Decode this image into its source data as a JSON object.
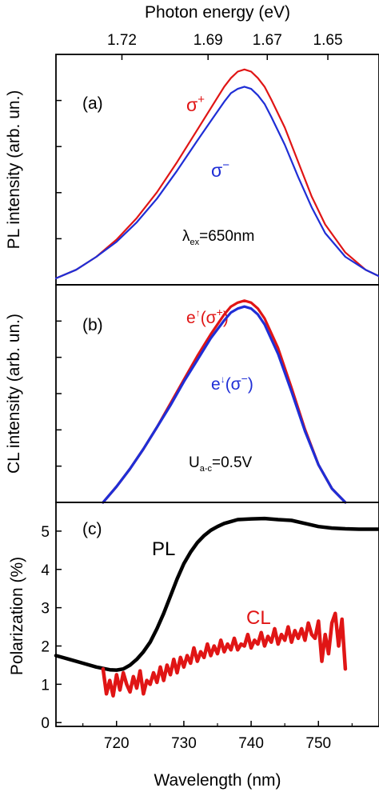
{
  "chart_data": [
    {
      "type": "line",
      "panel_label": "(a)",
      "top_axis_label": "Photon energy (eV)",
      "top_ticks": [
        "1.72",
        "1.69",
        "1.67",
        "1.65"
      ],
      "top_tick_wavelengths": [
        720.8,
        733.6,
        742.4,
        751.4
      ],
      "ylabel": "PL intensity (arb. un.)",
      "xlim": [
        711,
        759
      ],
      "ylim": [
        0,
        1.07
      ],
      "annotation": {
        "lambda": "λ",
        "sub": "ex",
        "value": "=650nm"
      },
      "series": [
        {
          "name": "σ+",
          "name_base": "σ",
          "name_sup": "+",
          "color": "#e01515",
          "x": [
            711,
            714,
            717,
            720,
            723,
            726,
            729,
            732,
            734,
            736,
            737,
            738,
            739,
            740,
            741,
            742,
            743,
            745,
            747,
            749,
            751,
            754,
            757,
            759
          ],
          "y": [
            0.03,
            0.07,
            0.13,
            0.21,
            0.31,
            0.43,
            0.57,
            0.72,
            0.82,
            0.92,
            0.96,
            0.99,
            1.0,
            0.99,
            0.96,
            0.92,
            0.86,
            0.73,
            0.57,
            0.41,
            0.28,
            0.15,
            0.07,
            0.04
          ]
        },
        {
          "name": "σ−",
          "name_base": "σ",
          "name_sup": "−",
          "color": "#1f2ed6",
          "x": [
            711,
            714,
            717,
            720,
            723,
            726,
            729,
            732,
            734,
            736,
            737,
            738,
            739,
            740,
            741,
            742,
            743,
            745,
            747,
            749,
            751,
            754,
            757,
            759
          ],
          "y": [
            0.03,
            0.07,
            0.13,
            0.2,
            0.29,
            0.4,
            0.53,
            0.67,
            0.76,
            0.85,
            0.89,
            0.91,
            0.92,
            0.91,
            0.88,
            0.84,
            0.78,
            0.65,
            0.5,
            0.36,
            0.24,
            0.13,
            0.07,
            0.04
          ]
        }
      ]
    },
    {
      "type": "line",
      "panel_label": "(b)",
      "ylabel": "CL intensity (arb. un.)",
      "xlim": [
        711,
        759
      ],
      "ylim": [
        0,
        1.1
      ],
      "annotation": {
        "main": "U",
        "sub": "a-c",
        "value": "=0.5V"
      },
      "series": [
        {
          "name": "e↑(σ+)",
          "name_base": "e",
          "name_arrow": "↑",
          "name_paren_base": "(σ",
          "name_sup": "+",
          "name_end": ")",
          "color": "#e01515",
          "x": [
            718,
            720,
            722,
            724,
            726,
            728,
            730,
            732,
            734,
            736,
            737,
            738,
            739,
            740,
            741,
            742,
            744,
            746,
            748,
            750,
            752,
            754
          ],
          "y": [
            0.0,
            0.08,
            0.17,
            0.27,
            0.38,
            0.5,
            0.62,
            0.74,
            0.85,
            0.95,
            0.99,
            1.01,
            1.02,
            1.01,
            0.98,
            0.93,
            0.78,
            0.58,
            0.37,
            0.19,
            0.07,
            0.0
          ]
        },
        {
          "name": "e↓(σ−)",
          "name_base": "e",
          "name_arrow": "↓",
          "name_paren_base": "(σ",
          "name_sup": "−",
          "name_end": ")",
          "color": "#1f2ed6",
          "x": [
            718,
            720,
            722,
            724,
            726,
            728,
            730,
            732,
            734,
            736,
            737,
            738,
            739,
            740,
            741,
            742,
            744,
            746,
            748,
            750,
            752,
            754
          ],
          "y": [
            0.0,
            0.08,
            0.17,
            0.27,
            0.38,
            0.49,
            0.61,
            0.72,
            0.83,
            0.92,
            0.96,
            0.98,
            0.99,
            0.98,
            0.95,
            0.9,
            0.75,
            0.56,
            0.36,
            0.19,
            0.07,
            0.0
          ]
        }
      ]
    },
    {
      "type": "line",
      "panel_label": "(c)",
      "xlabel": "Wavelength (nm)",
      "ylabel": "Polarization (%)",
      "xlim": [
        711,
        759
      ],
      "ylim": [
        -0.1,
        5.75
      ],
      "xticks": [
        720,
        730,
        740,
        750
      ],
      "yticks": [
        0,
        1,
        2,
        3,
        4,
        5
      ],
      "series": [
        {
          "name": "PL",
          "color": "#000000",
          "x": [
            711,
            713,
            715,
            717,
            719,
            720,
            721,
            722,
            723,
            724,
            725,
            726,
            727,
            728,
            729,
            730,
            731,
            732,
            733,
            734,
            735,
            736,
            737,
            738,
            740,
            742,
            744,
            746,
            748,
            750,
            752,
            754,
            756,
            759
          ],
          "y": [
            1.75,
            1.65,
            1.55,
            1.45,
            1.38,
            1.37,
            1.4,
            1.5,
            1.65,
            1.85,
            2.1,
            2.45,
            2.85,
            3.3,
            3.75,
            4.15,
            4.45,
            4.7,
            4.88,
            5.02,
            5.12,
            5.2,
            5.25,
            5.3,
            5.32,
            5.33,
            5.3,
            5.28,
            5.2,
            5.12,
            5.08,
            5.06,
            5.05,
            5.05
          ]
        },
        {
          "name": "CL",
          "color": "#e01515",
          "x": [
            718,
            718.5,
            719,
            719.5,
            720,
            720.5,
            721,
            721.5,
            722,
            722.5,
            723,
            723.5,
            724,
            724.5,
            725,
            725.5,
            726,
            726.5,
            727,
            727.5,
            728,
            728.5,
            729,
            729.5,
            730,
            730.5,
            731,
            731.5,
            732,
            732.5,
            733,
            733.5,
            734,
            734.5,
            735,
            735.5,
            736,
            736.5,
            737,
            737.5,
            738,
            738.5,
            739,
            739.5,
            740,
            740.5,
            741,
            741.5,
            742,
            742.5,
            743,
            743.5,
            744,
            744.5,
            745,
            745.5,
            746,
            746.5,
            747,
            747.5,
            748,
            748.5,
            749,
            749.5,
            750,
            750.5,
            751,
            751.5,
            752,
            752.5,
            753,
            753.5,
            754
          ],
          "y": [
            1.4,
            0.75,
            1.1,
            0.7,
            1.25,
            0.85,
            1.3,
            1.0,
            0.8,
            1.2,
            0.9,
            1.35,
            0.75,
            1.1,
            1.0,
            1.3,
            1.05,
            1.45,
            1.1,
            1.5,
            1.25,
            1.65,
            1.3,
            1.7,
            1.45,
            1.75,
            1.55,
            1.95,
            1.6,
            1.85,
            1.7,
            2.05,
            1.75,
            2.0,
            1.8,
            2.15,
            1.85,
            2.05,
            1.9,
            2.2,
            1.9,
            2.05,
            2.0,
            2.3,
            1.95,
            2.15,
            2.05,
            2.35,
            2.0,
            2.25,
            2.1,
            2.45,
            2.05,
            2.3,
            2.15,
            2.5,
            2.1,
            2.4,
            2.2,
            2.45,
            2.15,
            2.6,
            2.3,
            2.2,
            2.65,
            1.6,
            2.3,
            1.8,
            2.6,
            2.85,
            2.0,
            2.7,
            1.4
          ]
        }
      ]
    }
  ]
}
